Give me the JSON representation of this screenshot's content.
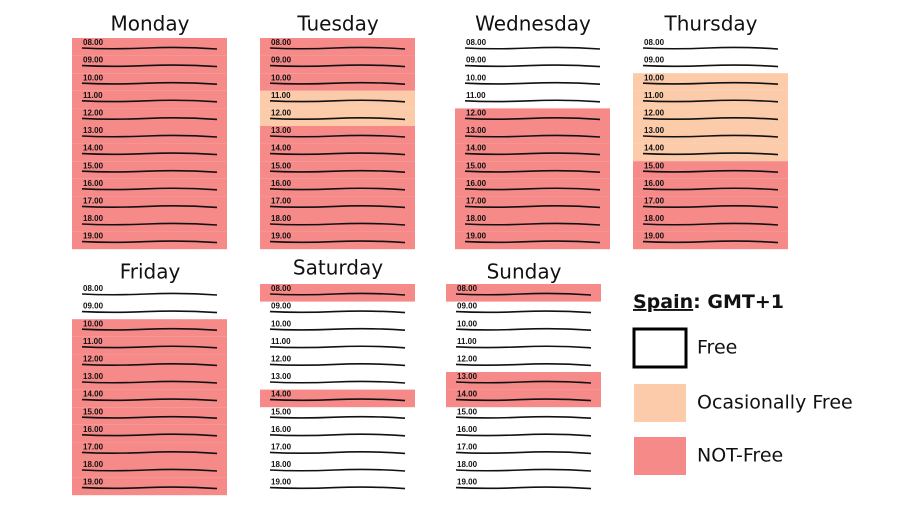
{
  "hours": [
    "08.00",
    "09.00",
    "10.00",
    "11.00",
    "12.00",
    "13.00",
    "14.00",
    "15.00",
    "16.00",
    "17.00",
    "18.00",
    "19.00"
  ],
  "days": [
    {
      "name": "Monday",
      "slots": [
        "not-free",
        "not-free",
        "not-free",
        "not-free",
        "not-free",
        "not-free",
        "not-free",
        "not-free",
        "not-free",
        "not-free",
        "not-free",
        "not-free"
      ]
    },
    {
      "name": "Tuesday",
      "slots": [
        "not-free",
        "not-free",
        "not-free",
        "occasional",
        "occasional",
        "not-free",
        "not-free",
        "not-free",
        "not-free",
        "not-free",
        "not-free",
        "not-free"
      ]
    },
    {
      "name": "Wednesday",
      "slots": [
        "free",
        "free",
        "free",
        "free",
        "not-free",
        "not-free",
        "not-free",
        "not-free",
        "not-free",
        "not-free",
        "not-free",
        "not-free"
      ]
    },
    {
      "name": "Thursday",
      "slots": [
        "free",
        "free",
        "occasional",
        "occasional",
        "occasional",
        "occasional",
        "occasional",
        "not-free",
        "not-free",
        "not-free",
        "not-free",
        "not-free"
      ]
    },
    {
      "name": "Friday",
      "slots": [
        "free",
        "free",
        "not-free",
        "not-free",
        "not-free",
        "not-free",
        "not-free",
        "not-free",
        "not-free",
        "not-free",
        "not-free",
        "not-free"
      ]
    },
    {
      "name": "Saturday",
      "slots": [
        "not-free",
        "free",
        "free",
        "free",
        "free",
        "free",
        "not-free",
        "free",
        "free",
        "free",
        "free",
        "free"
      ]
    },
    {
      "name": "Sunday",
      "slots": [
        "not-free",
        "free",
        "free",
        "free",
        "free",
        "not-free",
        "not-free",
        "free",
        "free",
        "free",
        "free",
        "free"
      ]
    }
  ],
  "legend": {
    "title": "Spain",
    "subtitle": ": GMT+1",
    "items": [
      {
        "key": "free",
        "label": "Free",
        "color": "#ffffff"
      },
      {
        "key": "occasional",
        "label": "Ocasionally Free",
        "color": "#fccba9"
      },
      {
        "key": "not-free",
        "label": "NOT-Free",
        "color": "#f58a89"
      }
    ]
  }
}
